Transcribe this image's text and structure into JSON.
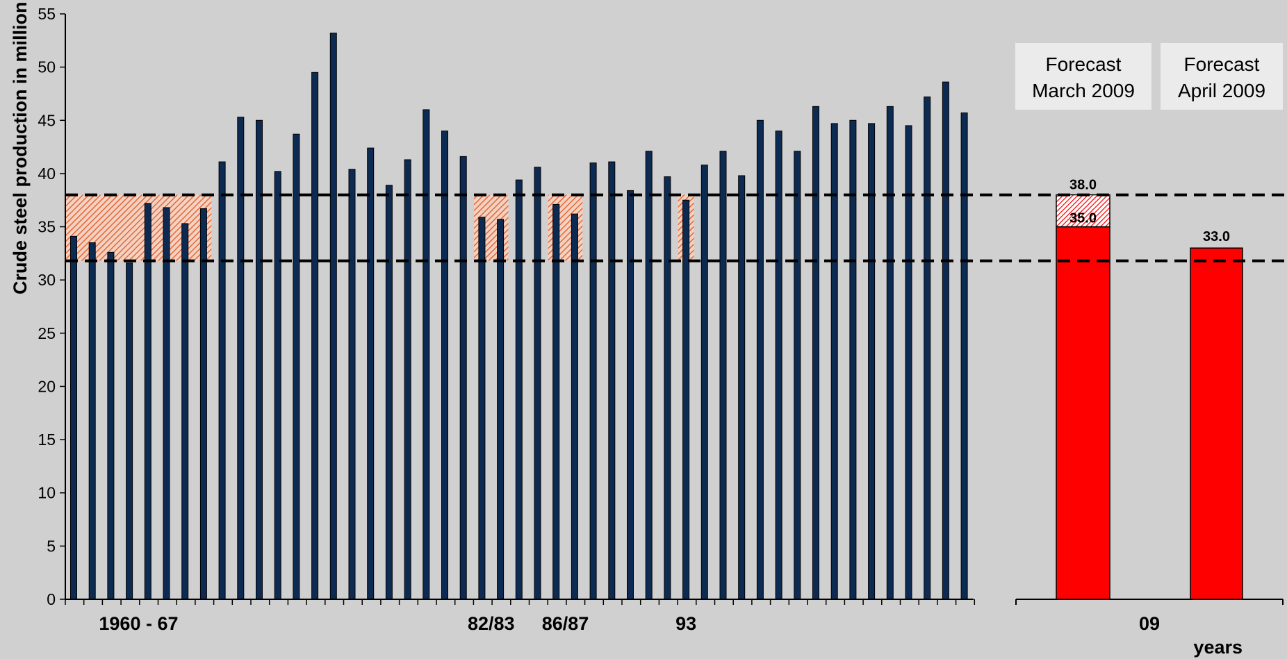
{
  "chart_data": {
    "type": "bar",
    "ylabel": "Crude steel production in million t",
    "xlabel": "years",
    "ylim": [
      0,
      55
    ],
    "yticks": [
      0,
      5,
      10,
      15,
      20,
      25,
      30,
      35,
      40,
      45,
      50,
      55
    ],
    "colors": {
      "history": "#0d2b52",
      "forecast": "#ff0000",
      "band": "#e2683a"
    },
    "history": {
      "values": [
        34.1,
        33.5,
        32.6,
        31.6,
        37.2,
        36.8,
        35.3,
        36.7,
        41.1,
        45.3,
        45.0,
        40.2,
        43.7,
        49.5,
        53.2,
        40.4,
        42.4,
        38.9,
        41.3,
        46.0,
        44.0,
        41.6,
        35.9,
        35.7,
        39.4,
        40.6,
        37.1,
        36.2,
        41.0,
        41.1,
        38.4,
        42.1,
        39.7,
        37.5,
        40.8,
        42.1,
        39.8,
        45.0,
        44.0,
        42.1,
        46.3,
        44.7,
        45.0,
        44.7,
        46.3,
        44.5,
        47.2,
        48.6,
        45.7
      ],
      "x_labels": [
        {
          "text": "1960 - 67",
          "index": 3.5
        },
        {
          "text": "82/83",
          "index": 22.5
        },
        {
          "text": "86/87",
          "index": 26.5
        },
        {
          "text": "93",
          "index": 33
        }
      ]
    },
    "recession_bands": [
      {
        "start_index": 0,
        "end_index": 7
      },
      {
        "start_index": 22,
        "end_index": 23
      },
      {
        "start_index": 26,
        "end_index": 27
      },
      {
        "start_index": 33,
        "end_index": 33
      }
    ],
    "reference_lines": [
      38.0,
      31.8
    ],
    "forecasts": [
      {
        "box_label_line1": "Forecast",
        "box_label_line2": "March 2009",
        "low": 35.0,
        "high": 38.0,
        "low_label": "35.0",
        "high_label": "38.0"
      },
      {
        "box_label_line1": "Forecast",
        "box_label_line2": "April 2009",
        "value": 33.0,
        "value_label": "33.0"
      }
    ],
    "forecast_x_label": "09"
  }
}
